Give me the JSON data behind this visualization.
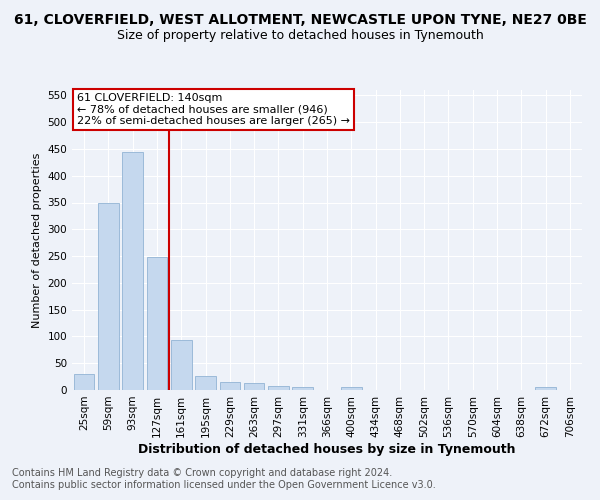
{
  "title": "61, CLOVERFIELD, WEST ALLOTMENT, NEWCASTLE UPON TYNE, NE27 0BE",
  "subtitle": "Size of property relative to detached houses in Tynemouth",
  "xlabel": "Distribution of detached houses by size in Tynemouth",
  "ylabel": "Number of detached properties",
  "categories": [
    "25sqm",
    "59sqm",
    "93sqm",
    "127sqm",
    "161sqm",
    "195sqm",
    "229sqm",
    "263sqm",
    "297sqm",
    "331sqm",
    "366sqm",
    "400sqm",
    "434sqm",
    "468sqm",
    "502sqm",
    "536sqm",
    "570sqm",
    "604sqm",
    "638sqm",
    "672sqm",
    "706sqm"
  ],
  "values": [
    30,
    350,
    445,
    248,
    93,
    27,
    15,
    13,
    8,
    6,
    0,
    5,
    0,
    0,
    0,
    0,
    0,
    0,
    0,
    5,
    0
  ],
  "bar_color": "#c5d8ee",
  "bar_edge_color": "#92b4d4",
  "vline_x": 3.5,
  "vline_color": "#cc0000",
  "annotation_text": "61 CLOVERFIELD: 140sqm\n← 78% of detached houses are smaller (946)\n22% of semi-detached houses are larger (265) →",
  "annotation_box_color": "#ffffff",
  "annotation_box_edge": "#cc0000",
  "ylim": [
    0,
    560
  ],
  "yticks": [
    0,
    50,
    100,
    150,
    200,
    250,
    300,
    350,
    400,
    450,
    500,
    550
  ],
  "footer_line1": "Contains HM Land Registry data © Crown copyright and database right 2024.",
  "footer_line2": "Contains public sector information licensed under the Open Government Licence v3.0.",
  "title_fontsize": 10,
  "subtitle_fontsize": 9,
  "xlabel_fontsize": 9,
  "ylabel_fontsize": 8,
  "tick_fontsize": 7.5,
  "annotation_fontsize": 8,
  "footer_fontsize": 7,
  "bg_color": "#eef2f9",
  "plot_bg_color": "#eef2f9",
  "grid_color": "#ffffff",
  "title_color": "#000000",
  "footer_color": "#555555"
}
